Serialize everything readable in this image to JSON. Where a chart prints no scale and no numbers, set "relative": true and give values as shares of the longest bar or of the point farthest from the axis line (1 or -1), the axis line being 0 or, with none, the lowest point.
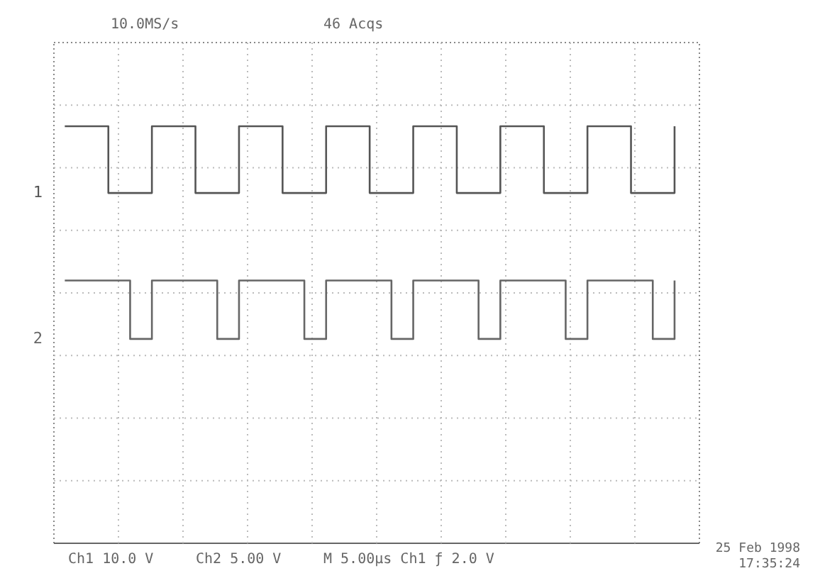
{
  "chart_data": {
    "type": "step",
    "relative": true,
    "grid": true,
    "legend": false,
    "categories": [
      null,
      null,
      null,
      null,
      null,
      null,
      null,
      null,
      null,
      null,
      null,
      null,
      null,
      null,
      null,
      null,
      null,
      null,
      null,
      null,
      null,
      null,
      null,
      null,
      null,
      null,
      null,
      null,
      null
    ],
    "series": [
      {
        "name": "1",
        "color": "#555555",
        "values": [
          1,
          1,
          0.84,
          0.84,
          1,
          1,
          0.84,
          0.84,
          1,
          1,
          0.84,
          0.84,
          1,
          1,
          0.84,
          0.84,
          1,
          1,
          0.84,
          0.84,
          1,
          1,
          0.84,
          0.84,
          1,
          1,
          0.84,
          0.84,
          1
        ]
      },
      {
        "name": "2",
        "color": "#666666",
        "values": [
          0.63,
          0.63,
          0.63,
          0.49,
          0.63,
          0.63,
          0.63,
          0.49,
          0.63,
          0.63,
          0.63,
          0.49,
          0.63,
          0.63,
          0.63,
          0.49,
          0.63,
          0.63,
          0.63,
          0.49,
          0.63,
          0.63,
          0.63,
          0.49,
          0.63,
          0.63,
          0.63,
          0.49,
          0.63
        ]
      }
    ],
    "annotations": [
      "10.0MS/s",
      "46 Acqs",
      "Ch1 10.0 V",
      "Ch2 5.00 V",
      "M 5.00μs Ch1 ƒ 2.0 V",
      "25 Feb 1998",
      "17:35:24"
    ]
  }
}
